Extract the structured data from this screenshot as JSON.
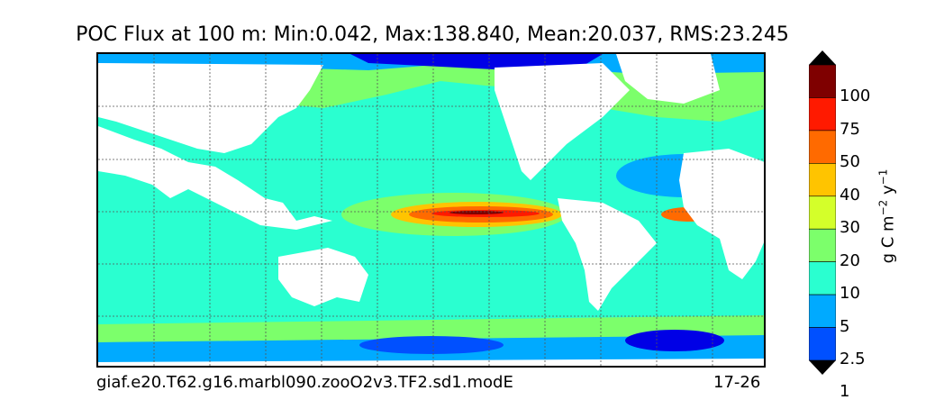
{
  "title": "POC Flux at 100 m: Min:0.042, Max:138.840, Mean:20.037, RMS:23.245",
  "footer": {
    "case_name": "giaf.e20.T62.g16.marbl090.zooO2v3.TF2.sd1.modE",
    "years": "17-26"
  },
  "colorbar": {
    "levels": [
      "100",
      "75",
      "50",
      "40",
      "30",
      "20",
      "10",
      "5",
      "2.5",
      "1"
    ],
    "colors": [
      "#7f0000",
      "#ff1a00",
      "#ff6a00",
      "#ffc400",
      "#d4ff2a",
      "#7cff6b",
      "#2affd0",
      "#00aaff",
      "#0050ff",
      "#0000e6",
      "#00008f"
    ],
    "units": "g C m",
    "units_exp1": "−2",
    "units_mid": " y",
    "units_exp2": "−1"
  }
}
